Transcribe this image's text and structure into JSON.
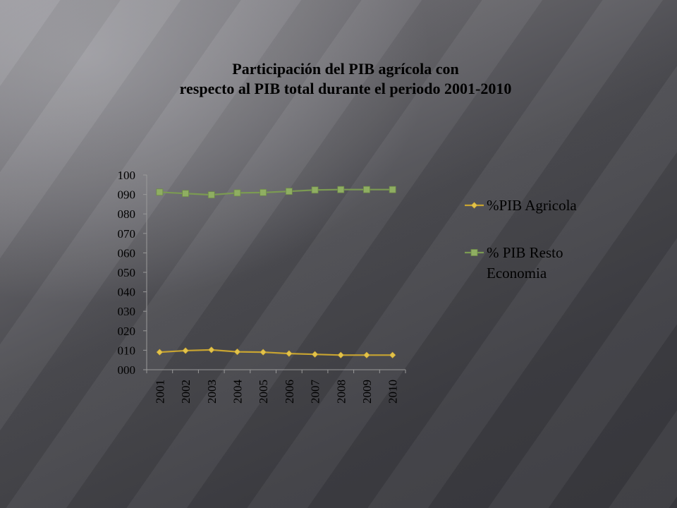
{
  "chart_data": {
    "type": "line",
    "title_line1": "Participación del PIB agrícola con",
    "title_line2": "respecto al PIB total durante  el periodo 2001-2010",
    "categories": [
      "2001",
      "2002",
      "2003",
      "2004",
      "2005",
      "2006",
      "2007",
      "2008",
      "2009",
      "2010"
    ],
    "y_tick_labels": [
      "000",
      "010",
      "020",
      "030",
      "040",
      "050",
      "060",
      "070",
      "080",
      "090",
      "100"
    ],
    "ylim": [
      0,
      100
    ],
    "grid": false,
    "legend_position": "right",
    "series": [
      {
        "name": "%PIB Agricola",
        "legend_lines": [
          "%PIB Agricola"
        ],
        "color": "#c8a431",
        "marker": "diamond",
        "values": [
          9,
          9.8,
          10.2,
          9.2,
          9,
          8.3,
          7.9,
          7.5,
          7.5,
          7.5
        ]
      },
      {
        "name": "% PIB Resto Economia",
        "legend_lines": [
          "% PIB Resto",
          "Economia"
        ],
        "color": "#7b9a52",
        "marker": "square",
        "values": [
          91.2,
          90.5,
          89.8,
          90.8,
          91,
          91.6,
          92.3,
          92.5,
          92.5,
          92.5
        ]
      }
    ]
  }
}
